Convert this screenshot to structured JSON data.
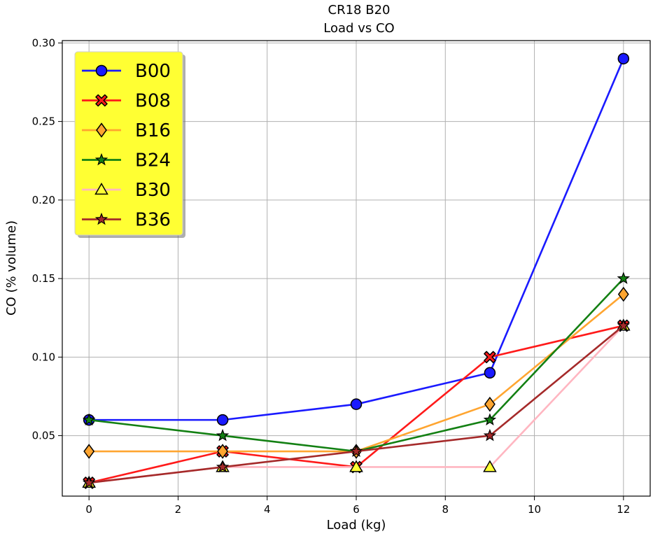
{
  "chart_data": {
    "type": "line",
    "title": "CR18 B20",
    "subtitle": "Load vs CO",
    "xlabel": "Load (kg)",
    "ylabel": "CO (% volume)",
    "xlim": [
      -0.6,
      12.6
    ],
    "ylim": [
      0.0115,
      0.3015
    ],
    "xticks": [
      0,
      2,
      4,
      6,
      8,
      10,
      12
    ],
    "xtick_labels": [
      "0",
      "2",
      "4",
      "6",
      "8",
      "10",
      "12"
    ],
    "yticks": [
      0.05,
      0.1,
      0.15,
      0.2,
      0.25,
      0.3
    ],
    "ytick_labels": [
      "0.05",
      "0.10",
      "0.15",
      "0.20",
      "0.25",
      "0.30"
    ],
    "grid": true,
    "legend_position": "top-left",
    "legend_background": "#ffff33",
    "x": [
      0,
      3,
      6,
      9,
      12
    ],
    "series": [
      {
        "name": "B00",
        "values": [
          0.06,
          0.06,
          0.07,
          0.09,
          0.29
        ],
        "color": "#1a1aff",
        "marker": "circle",
        "marker_fill": "#1a1aff"
      },
      {
        "name": "B08",
        "values": [
          0.02,
          0.04,
          0.03,
          0.1,
          0.12
        ],
        "color": "#ff1a1a",
        "marker": "x-filled",
        "marker_fill": "#ff1a1a"
      },
      {
        "name": "B16",
        "values": [
          0.04,
          0.04,
          0.04,
          0.07,
          0.14
        ],
        "color": "#ffa530",
        "marker": "diamond",
        "marker_fill": "#ffa530"
      },
      {
        "name": "B24",
        "values": [
          0.06,
          0.05,
          0.04,
          0.06,
          0.15
        ],
        "color": "#138013",
        "marker": "star",
        "marker_fill": "#138013"
      },
      {
        "name": "B30",
        "values": [
          0.02,
          0.03,
          0.03,
          0.03,
          0.12
        ],
        "color": "#ffb6c1",
        "marker": "triangle",
        "marker_fill": "#ffff33"
      },
      {
        "name": "B36",
        "values": [
          0.02,
          0.03,
          0.04,
          0.05,
          0.12
        ],
        "color": "#a52a2a",
        "marker": "star",
        "marker_fill": "#a52a2a"
      }
    ]
  }
}
